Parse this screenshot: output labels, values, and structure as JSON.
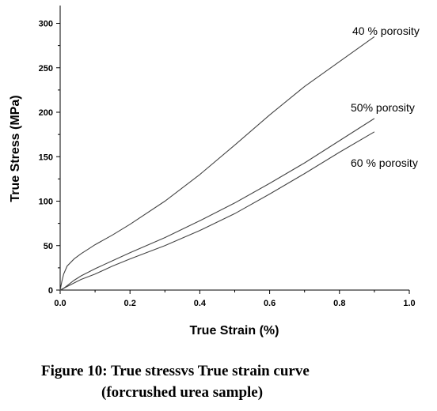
{
  "chart_data": {
    "type": "line",
    "xlabel": "True Strain (%)",
    "ylabel": "True Stress (MPa)",
    "xlim": [
      0,
      1.0
    ],
    "ylim": [
      0,
      320
    ],
    "x_ticks": [
      "0.0",
      "0.2",
      "0.4",
      "0.6",
      "0.8",
      "1.0"
    ],
    "y_ticks": [
      "0",
      "50",
      "100",
      "150",
      "200",
      "250",
      "300"
    ],
    "grid": false,
    "series": [
      {
        "name": "40 % porosity",
        "x": [
          0,
          0.005,
          0.01,
          0.02,
          0.04,
          0.06,
          0.08,
          0.1,
          0.15,
          0.2,
          0.3,
          0.4,
          0.5,
          0.6,
          0.7,
          0.8,
          0.9
        ],
        "y": [
          0,
          10,
          18,
          27,
          35,
          41,
          46,
          51,
          62,
          74,
          100,
          130,
          163,
          197,
          229,
          257,
          285
        ]
      },
      {
        "name": "50% porosity",
        "x": [
          0,
          0.01,
          0.02,
          0.04,
          0.06,
          0.08,
          0.1,
          0.15,
          0.2,
          0.3,
          0.4,
          0.5,
          0.6,
          0.7,
          0.8,
          0.9
        ],
        "y": [
          0,
          2,
          5,
          11,
          16,
          20,
          24,
          33,
          42,
          59,
          78,
          98,
          120,
          143,
          168,
          193
        ]
      },
      {
        "name": "60 % porosity",
        "x": [
          0,
          0.01,
          0.02,
          0.04,
          0.06,
          0.08,
          0.1,
          0.15,
          0.2,
          0.3,
          0.4,
          0.5,
          0.6,
          0.7,
          0.8,
          0.9
        ],
        "y": [
          0,
          2,
          4,
          8,
          12,
          15,
          18,
          27,
          35,
          50,
          67,
          86,
          108,
          131,
          155,
          178
        ]
      }
    ]
  },
  "caption": {
    "line1": "Figure 10: True stressvs True strain curve",
    "line2": "(forcrushed urea sample)"
  }
}
